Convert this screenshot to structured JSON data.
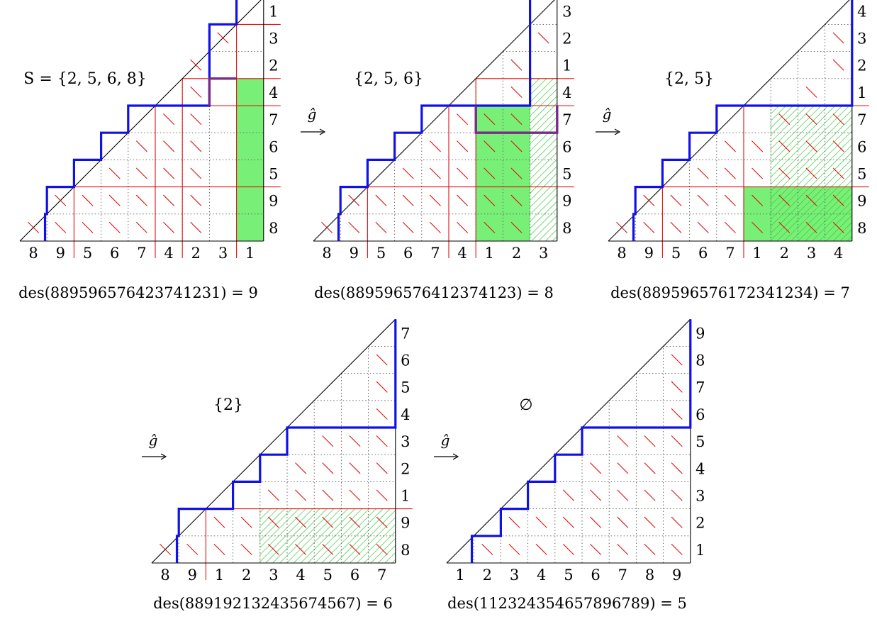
{
  "panels": [
    {
      "set_label": "S = {2, 5, 6, 8}",
      "bottom_labels": [
        "8",
        "9",
        "5",
        "6",
        "7",
        "4",
        "2",
        "3",
        "1"
      ],
      "right_labels": [
        "8",
        "9",
        "5",
        "6",
        "7",
        "4",
        "2",
        "3",
        "1"
      ],
      "caption": "des(889596576423741231) = 9",
      "path_heights": [
        1,
        2,
        3,
        4,
        5,
        5,
        5,
        8,
        9
      ],
      "red_separators": [
        2,
        5,
        6,
        8
      ],
      "red_marks": [
        [
          0,
          0
        ],
        [
          1,
          0
        ],
        [
          2,
          0
        ],
        [
          3,
          0
        ],
        [
          4,
          0
        ],
        [
          5,
          0
        ],
        [
          6,
          0
        ],
        [
          1,
          1
        ],
        [
          2,
          1
        ],
        [
          3,
          1
        ],
        [
          4,
          1
        ],
        [
          5,
          1
        ],
        [
          6,
          1
        ],
        [
          3,
          2
        ],
        [
          4,
          2
        ],
        [
          5,
          2
        ],
        [
          6,
          2
        ],
        [
          4,
          3
        ],
        [
          5,
          3
        ],
        [
          6,
          3
        ],
        [
          5,
          4
        ],
        [
          6,
          4
        ],
        [
          6,
          5
        ],
        [
          6,
          6
        ],
        [
          7,
          7
        ]
      ],
      "highlights": [
        {
          "kind": "solid",
          "col_range": [
            8,
            9
          ],
          "row_range": [
            0,
            6
          ]
        }
      ],
      "purple_path": [
        [
          7,
          5
        ],
        [
          7,
          6
        ],
        [
          8,
          6
        ]
      ]
    },
    {
      "set_label": "{2, 5, 6}",
      "bottom_labels": [
        "8",
        "9",
        "5",
        "6",
        "7",
        "4",
        "1",
        "2",
        "3"
      ],
      "right_labels": [
        "8",
        "9",
        "5",
        "6",
        "7",
        "4",
        "1",
        "2",
        "3"
      ],
      "caption": "des(889596576412374123) = 8",
      "path_heights": [
        1,
        2,
        3,
        4,
        5,
        5,
        5,
        5,
        9
      ],
      "red_separators": [
        2,
        5,
        6
      ],
      "red_marks": [
        [
          0,
          0
        ],
        [
          1,
          0
        ],
        [
          2,
          0
        ],
        [
          3,
          0
        ],
        [
          4,
          0
        ],
        [
          5,
          0
        ],
        [
          6,
          0
        ],
        [
          7,
          0
        ],
        [
          1,
          1
        ],
        [
          2,
          1
        ],
        [
          3,
          1
        ],
        [
          4,
          1
        ],
        [
          5,
          1
        ],
        [
          6,
          1
        ],
        [
          7,
          1
        ],
        [
          3,
          2
        ],
        [
          4,
          2
        ],
        [
          5,
          2
        ],
        [
          6,
          2
        ],
        [
          7,
          2
        ],
        [
          4,
          3
        ],
        [
          5,
          3
        ],
        [
          6,
          3
        ],
        [
          7,
          3
        ],
        [
          5,
          4
        ],
        [
          6,
          4
        ],
        [
          7,
          4
        ],
        [
          7,
          5
        ],
        [
          7,
          6
        ],
        [
          8,
          7
        ]
      ],
      "highlights": [
        {
          "kind": "solid",
          "col_range": [
            6,
            8
          ],
          "row_range": [
            0,
            5
          ]
        },
        {
          "kind": "hatch",
          "col_range": [
            8,
            9
          ],
          "row_range": [
            0,
            6
          ]
        }
      ],
      "purple_path": [
        [
          6,
          5
        ],
        [
          6,
          4
        ],
        [
          9,
          4
        ],
        [
          9,
          5
        ]
      ]
    },
    {
      "set_label": "{2, 5}",
      "bottom_labels": [
        "8",
        "9",
        "5",
        "6",
        "7",
        "1",
        "2",
        "3",
        "4"
      ],
      "right_labels": [
        "8",
        "9",
        "5",
        "6",
        "7",
        "1",
        "2",
        "3",
        "4"
      ],
      "caption": "des(889596576172341234) = 7",
      "path_heights": [
        1,
        2,
        3,
        4,
        5,
        5,
        5,
        5,
        5
      ],
      "red_separators": [
        2,
        5
      ],
      "red_marks": [
        [
          0,
          0
        ],
        [
          1,
          0
        ],
        [
          2,
          0
        ],
        [
          3,
          0
        ],
        [
          4,
          0
        ],
        [
          5,
          0
        ],
        [
          6,
          0
        ],
        [
          7,
          0
        ],
        [
          8,
          0
        ],
        [
          1,
          1
        ],
        [
          2,
          1
        ],
        [
          3,
          1
        ],
        [
          4,
          1
        ],
        [
          5,
          1
        ],
        [
          6,
          1
        ],
        [
          7,
          1
        ],
        [
          8,
          1
        ],
        [
          3,
          2
        ],
        [
          4,
          2
        ],
        [
          5,
          2
        ],
        [
          6,
          2
        ],
        [
          7,
          2
        ],
        [
          8,
          2
        ],
        [
          4,
          3
        ],
        [
          5,
          3
        ],
        [
          6,
          3
        ],
        [
          7,
          3
        ],
        [
          8,
          3
        ],
        [
          6,
          4
        ],
        [
          7,
          4
        ],
        [
          8,
          4
        ],
        [
          7,
          5
        ],
        [
          8,
          6
        ],
        [
          8,
          7
        ]
      ],
      "highlights": [
        {
          "kind": "solid",
          "col_range": [
            5,
            9
          ],
          "row_range": [
            0,
            2
          ]
        },
        {
          "kind": "hatch",
          "col_range": [
            6,
            9
          ],
          "row_range": [
            0,
            5
          ]
        }
      ],
      "purple_path": []
    },
    {
      "set_label": "{2}",
      "bottom_labels": [
        "8",
        "9",
        "1",
        "2",
        "3",
        "4",
        "5",
        "6",
        "7"
      ],
      "right_labels": [
        "8",
        "9",
        "1",
        "2",
        "3",
        "4",
        "5",
        "6",
        "7"
      ],
      "caption": "des(889192132435674567) = 6",
      "path_heights": [
        1,
        2,
        2,
        3,
        4,
        5,
        5,
        5,
        5
      ],
      "red_separators": [
        2
      ],
      "red_marks": [
        [
          0,
          0
        ],
        [
          1,
          0
        ],
        [
          2,
          0
        ],
        [
          3,
          0
        ],
        [
          4,
          0
        ],
        [
          5,
          0
        ],
        [
          6,
          0
        ],
        [
          7,
          0
        ],
        [
          8,
          0
        ],
        [
          2,
          1
        ],
        [
          3,
          1
        ],
        [
          4,
          1
        ],
        [
          5,
          1
        ],
        [
          6,
          1
        ],
        [
          7,
          1
        ],
        [
          8,
          1
        ],
        [
          4,
          2
        ],
        [
          5,
          2
        ],
        [
          6,
          2
        ],
        [
          7,
          2
        ],
        [
          8,
          2
        ],
        [
          5,
          3
        ],
        [
          6,
          3
        ],
        [
          7,
          3
        ],
        [
          8,
          3
        ],
        [
          6,
          4
        ],
        [
          7,
          4
        ],
        [
          8,
          4
        ],
        [
          8,
          5
        ],
        [
          8,
          6
        ],
        [
          8,
          7
        ]
      ],
      "highlights": [
        {
          "kind": "hatch",
          "col_range": [
            4,
            9
          ],
          "row_range": [
            0,
            2
          ]
        }
      ],
      "purple_path": []
    },
    {
      "set_label": "∅",
      "bottom_labels": [
        "1",
        "2",
        "3",
        "4",
        "5",
        "6",
        "7",
        "8",
        "9"
      ],
      "right_labels": [
        "1",
        "2",
        "3",
        "4",
        "5",
        "6",
        "7",
        "8",
        "9"
      ],
      "caption": "des(112324354657896789) = 5",
      "path_heights": [
        1,
        1,
        2,
        3,
        4,
        5,
        5,
        5,
        5
      ],
      "red_separators": [],
      "red_marks": [
        [
          1,
          0
        ],
        [
          2,
          0
        ],
        [
          3,
          0
        ],
        [
          4,
          0
        ],
        [
          5,
          0
        ],
        [
          6,
          0
        ],
        [
          7,
          0
        ],
        [
          8,
          0
        ],
        [
          2,
          1
        ],
        [
          3,
          1
        ],
        [
          4,
          1
        ],
        [
          5,
          1
        ],
        [
          6,
          1
        ],
        [
          7,
          1
        ],
        [
          8,
          1
        ],
        [
          4,
          2
        ],
        [
          5,
          2
        ],
        [
          6,
          2
        ],
        [
          7,
          2
        ],
        [
          8,
          2
        ],
        [
          5,
          3
        ],
        [
          6,
          3
        ],
        [
          7,
          3
        ],
        [
          8,
          3
        ],
        [
          6,
          4
        ],
        [
          7,
          4
        ],
        [
          8,
          4
        ],
        [
          8,
          5
        ],
        [
          8,
          6
        ],
        [
          8,
          7
        ]
      ],
      "highlights": [],
      "purple_path": []
    }
  ],
  "arrow_label": "ĝ",
  "colors": {
    "path": "#1010e8",
    "red": "#e01010",
    "green": "#78f078",
    "hatch": "#3cc83c",
    "purple": "#7a2a8a",
    "grid": "#555555"
  }
}
